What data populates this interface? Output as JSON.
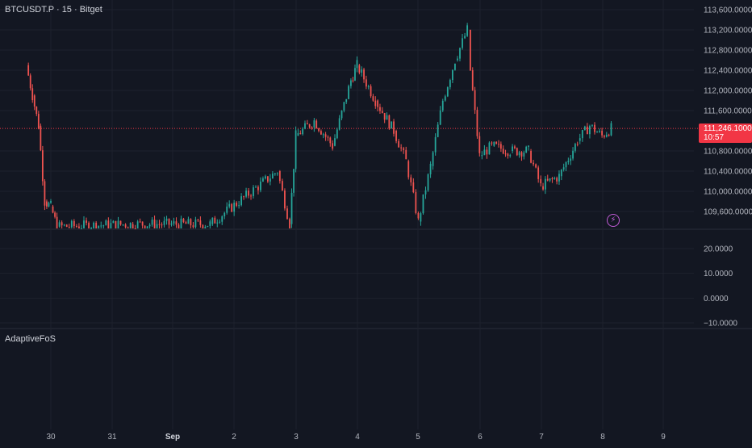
{
  "header": {
    "symbol_title": "BTCUSDT.P · 15 · Bitget"
  },
  "price_axis": {
    "labels": [
      "113,600.0000",
      "113,200.0000",
      "112,800.0000",
      "112,400.0000",
      "112,000.0000",
      "111,600.0000",
      "110,800.0000",
      "110,400.0000",
      "110,000.0000",
      "109,600.0000"
    ],
    "values": [
      113600,
      113200,
      112800,
      112400,
      112000,
      111600,
      110800,
      110400,
      110000,
      109600
    ]
  },
  "last_price": {
    "value_text": "111,246.1000",
    "countdown": "10:57",
    "value": 111246.1
  },
  "oscillator_axis": {
    "labels": [
      "20.0000",
      "10.0000",
      "0.0000",
      "−10.0000"
    ],
    "values": [
      20,
      10,
      0,
      -10
    ]
  },
  "indicator": {
    "name": "AdaptiveFoS"
  },
  "time_axis": {
    "labels": [
      "30",
      "31",
      "Sep",
      "2",
      "3",
      "4",
      "5",
      "6",
      "7",
      "8",
      "9"
    ]
  },
  "icons": {
    "alert": "flash-icon"
  },
  "colors": {
    "background": "#131722",
    "up": "#26a69a",
    "down": "#ef5350",
    "price_line": "#f23645",
    "grid": "#1e222d",
    "axis_text": "#b2b5be"
  },
  "chart_data": {
    "type": "candlestick",
    "symbol": "BTCUSDT.P",
    "interval": "15",
    "exchange": "Bitget",
    "ylim": [
      109300,
      113700
    ],
    "x_labels": [
      "30",
      "31",
      "Sep",
      "2",
      "3",
      "4",
      "5",
      "6",
      "7",
      "8",
      "9"
    ],
    "approx_path": [
      {
        "t": "29.6",
        "price": 112500
      },
      {
        "t": "29.7",
        "price": 111900
      },
      {
        "t": "29.8",
        "price": 111300
      },
      {
        "t": "29.9",
        "price": 109800
      },
      {
        "t": "30.0",
        "price": 109700
      },
      {
        "t": "30.1",
        "price": 109300
      },
      {
        "t": "31.3",
        "price": 109350
      },
      {
        "t": "1.6",
        "price": 109350
      },
      {
        "t": "2.7",
        "price": 110400
      },
      {
        "t": "2.9",
        "price": 109350
      },
      {
        "t": "3.0",
        "price": 111100
      },
      {
        "t": "3.3",
        "price": 111400
      },
      {
        "t": "3.6",
        "price": 110900
      },
      {
        "t": "3.9",
        "price": 112200
      },
      {
        "t": "4.0",
        "price": 112500
      },
      {
        "t": "4.3",
        "price": 111800
      },
      {
        "t": "4.6",
        "price": 111200
      },
      {
        "t": "4.8",
        "price": 110600
      },
      {
        "t": "5.0",
        "price": 109400
      },
      {
        "t": "5.2",
        "price": 110500
      },
      {
        "t": "5.4",
        "price": 111800
      },
      {
        "t": "5.6",
        "price": 112600
      },
      {
        "t": "5.8",
        "price": 113200
      },
      {
        "t": "5.85",
        "price": 112400
      },
      {
        "t": "6.0",
        "price": 110700
      },
      {
        "t": "6.2",
        "price": 110900
      },
      {
        "t": "6.5",
        "price": 110800
      },
      {
        "t": "6.8",
        "price": 110800
      },
      {
        "t": "7.0",
        "price": 110100
      },
      {
        "t": "7.3",
        "price": 110300
      },
      {
        "t": "7.6",
        "price": 111000
      },
      {
        "t": "7.8",
        "price": 111300
      },
      {
        "t": "8.0",
        "price": 111100
      },
      {
        "t": "8.15",
        "price": 111250
      }
    ]
  }
}
